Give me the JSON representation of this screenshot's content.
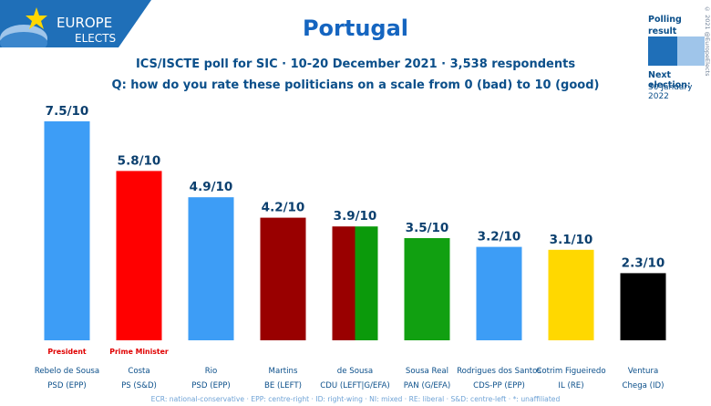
{
  "logo": {
    "line1": "EUROPE",
    "line2": "ELECTS"
  },
  "title": "Portugal",
  "subtitle": "ICS/ISCTE poll for SIC · 10-20 December 2021 · 3,538 respondents",
  "question": "Q: how do you rate these politicians on a scale from 0 (bad) to 10 (good)",
  "polling_label_1": "Polling",
  "polling_label_2": "result",
  "next_election_label": "Next election:",
  "next_election_date": "30 January 2022",
  "copyright": "© 2021 @EuropeElects",
  "footer": "ECR: national-conservative · EPP: centre-right · ID: right-wing · NI: mixed · RE: liberal · S&D: centre-left · *: unaffiliated",
  "colors": {
    "epp": "#3d9df6",
    "ps": "#ff0000",
    "be": "#990000",
    "pcp": "#990000",
    "pev": "#0b9a0b",
    "pan": "#11a011",
    "il": "#ffd800",
    "chega": "#000000"
  },
  "chart_data": {
    "type": "bar",
    "ylim": [
      0,
      10
    ],
    "bars": [
      {
        "name": "Rebelo de Sousa",
        "party": "PSD (EPP)",
        "value": 7.5,
        "label": "7.5/10",
        "note": "President",
        "colors": [
          "#3d9df6"
        ]
      },
      {
        "name": "Costa",
        "party": "PS (S&D)",
        "value": 5.8,
        "label": "5.8/10",
        "note": "Prime Minister",
        "colors": [
          "#ff0000"
        ]
      },
      {
        "name": "Rio",
        "party": "PSD (EPP)",
        "value": 4.9,
        "label": "4.9/10",
        "note": "",
        "colors": [
          "#3d9df6"
        ]
      },
      {
        "name": "Martins",
        "party": "BE (LEFT)",
        "value": 4.2,
        "label": "4.2/10",
        "note": "",
        "colors": [
          "#990000"
        ]
      },
      {
        "name": "de Sousa",
        "party": "CDU (LEFT|G/EFA)",
        "value": 3.9,
        "label": "3.9/10",
        "note": "",
        "colors": [
          "#990000",
          "#0b9a0b"
        ]
      },
      {
        "name": "Sousa Real",
        "party": "PAN (G/EFA)",
        "value": 3.5,
        "label": "3.5/10",
        "note": "",
        "colors": [
          "#11a011"
        ]
      },
      {
        "name": "Rodrigues dos Santos",
        "party": "CDS-PP (EPP)",
        "value": 3.2,
        "label": "3.2/10",
        "note": "",
        "colors": [
          "#3d9df6"
        ]
      },
      {
        "name": "Cotrim Figueiredo",
        "party": "IL (RE)",
        "value": 3.1,
        "label": "3.1/10",
        "note": "",
        "colors": [
          "#ffd800"
        ]
      },
      {
        "name": "Ventura",
        "party": "Chega (ID)",
        "value": 2.3,
        "label": "2.3/10",
        "note": "",
        "colors": [
          "#000000"
        ]
      }
    ]
  }
}
